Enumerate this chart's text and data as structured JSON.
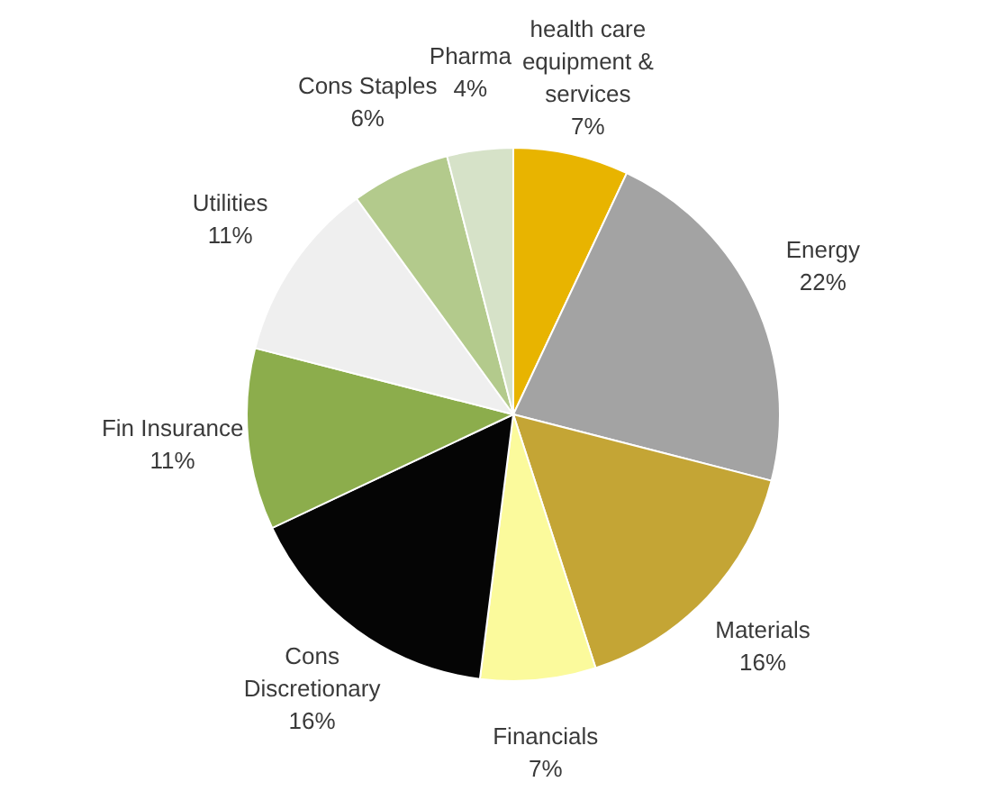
{
  "chart_data": {
    "type": "pie",
    "categories": [
      "health care equipment & services",
      "Energy",
      "Materials",
      "Financials",
      "Cons Discretionary",
      "Fin Insurance",
      "Utilities",
      "Cons Staples",
      "Pharma"
    ],
    "values": [
      7,
      22,
      16,
      7,
      16,
      11,
      11,
      6,
      4
    ],
    "value_labels": [
      "7%",
      "22%",
      "16%",
      "7%",
      "16%",
      "11%",
      "11%",
      "6%",
      "4%"
    ],
    "colors": [
      "#e8b400",
      "#a3a3a3",
      "#c4a535",
      "#fbfa9c",
      "#050505",
      "#8cad4c",
      "#efefef",
      "#b3ca8c",
      "#d6e2c8"
    ],
    "legend": false
  }
}
